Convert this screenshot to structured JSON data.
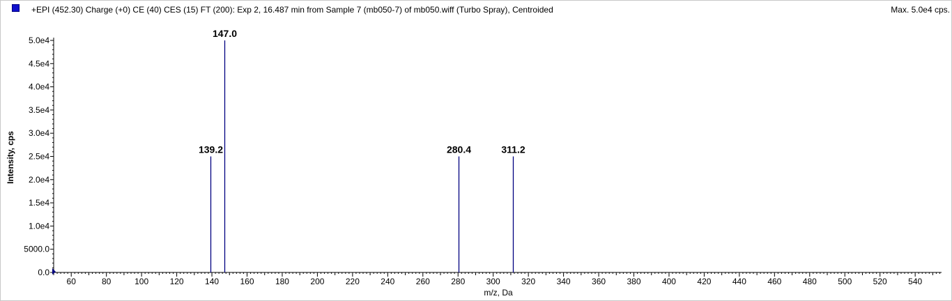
{
  "header": {
    "title": "+EPI (452.30) Charge (+0) CE (40) CES (15) FT (200): Exp 2, 16.487 min from Sample 7 (mb050-7) of mb050.wiff (Turbo Spray), Centroided",
    "max_label": "Max. 5.0e4 cps."
  },
  "colors": {
    "peak": "#000080",
    "legend_swatch": "#1010cc",
    "axis": "#000000"
  },
  "chart_data": {
    "type": "bar",
    "title": "+EPI (452.30) Charge (+0) CE (40) CES (15) FT (200): Exp 2, 16.487 min from Sample 7 (mb050-7) of mb050.wiff (Turbo Spray), Centroided",
    "xlabel": "m/z, Da",
    "ylabel": "Intensity, cps",
    "xlim": [
      50,
      555
    ],
    "ylim": [
      0,
      50000
    ],
    "x_ticks": [
      60,
      80,
      100,
      120,
      140,
      160,
      180,
      200,
      220,
      240,
      260,
      280,
      300,
      320,
      340,
      360,
      380,
      400,
      420,
      440,
      460,
      480,
      500,
      520,
      540
    ],
    "y_ticks": [
      0,
      5000,
      10000,
      15000,
      20000,
      25000,
      30000,
      35000,
      40000,
      45000,
      50000
    ],
    "y_tick_labels": [
      "0.0",
      "5000.0",
      "1.0e4",
      "1.5e4",
      "2.0e4",
      "2.5e4",
      "3.0e4",
      "3.5e4",
      "4.0e4",
      "4.5e4",
      "5.0e4"
    ],
    "peaks": [
      {
        "mz": 139.2,
        "intensity": 25000,
        "label": "139.2"
      },
      {
        "mz": 147.0,
        "intensity": 50000,
        "label": "147.0"
      },
      {
        "mz": 280.4,
        "intensity": 25000,
        "label": "280.4"
      },
      {
        "mz": 311.2,
        "intensity": 25000,
        "label": "311.2"
      }
    ],
    "grid": false,
    "legend": "top-left"
  }
}
